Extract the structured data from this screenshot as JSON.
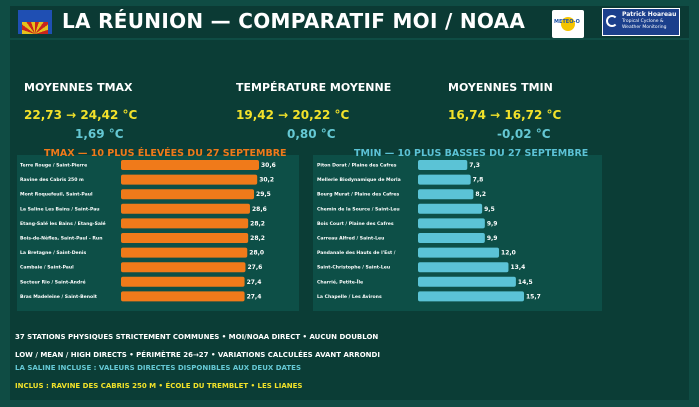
{
  "header": {
    "title": "LA RÉUNION — COMPARATIF MOI / NOAA",
    "logo_meteo": "METEO-O",
    "logo_ph_name": "Patrick Hoareau",
    "logo_ph_sub": "Tropical Cyclone & Weather Monitoring"
  },
  "stats": {
    "tmax": {
      "label": "MOYENNES TMAX",
      "range": "22,73 → 24,42 °C",
      "delta": "1,69 °C"
    },
    "tmean": {
      "label": "TEMPÉRATURE MOYENNE",
      "range": "19,42 → 20,22 °C",
      "delta": "0,80 °C"
    },
    "tmin": {
      "label": "MOYENNES TMIN",
      "range": "16,74 → 16,72 °C",
      "delta": "-0,02 °C"
    }
  },
  "chart_data": [
    {
      "type": "bar",
      "orientation": "horizontal",
      "title": "TMAX — 10 PLUS ÉLEVÉES DU 27 SEPTEMBRE",
      "color": "#f07a1a",
      "categories": [
        "Terre Rouge / Saint-Pierre",
        "Ravine des Cabris 250 m",
        "Mont Roquefeuil, Saint-Paul",
        "La Saline Les Bains / Saint-Pau",
        "Etang-Salé les Bains / Etang-Salé",
        "Bois-de-Nèfles, Saint-Paul - Run",
        "La Bretagne / Saint-Denis",
        "Cambaie / Saint-Paul",
        "Secteur Rio / Saint-André",
        "Bras Madeleine / Saint-Benoît"
      ],
      "values": [
        30.6,
        30.2,
        29.5,
        28.6,
        28.2,
        28.2,
        28.0,
        27.6,
        27.4,
        27.4
      ],
      "value_labels": [
        "30,6",
        "30,2",
        "29,5",
        "28,6",
        "28,2",
        "28,2",
        "28,0",
        "27,6",
        "27,4",
        "27,4"
      ]
    },
    {
      "type": "bar",
      "orientation": "horizontal",
      "title": "TMIN — 10 PLUS BASSES DU 27 SEPTEMBRE",
      "color": "#5bc3d6",
      "categories": [
        "Piton Dorat / Plaine des Cafres",
        "Mellerie Biodynamique de Morla",
        "Bourg Murat / Plaine des Cafres",
        "Chemin de la Source / Saint-Leu",
        "Bois Court / Plaine des Cafres",
        "Carreau Alfred / Saint-Leu",
        "Pandanale des Hauts de l'Est /",
        "Saint-Christophe / Saint-Leu",
        "Charrié, Petite-Île",
        "La Chapelle / Les Avirons"
      ],
      "values": [
        7.3,
        7.8,
        8.2,
        9.5,
        9.9,
        9.9,
        12.0,
        13.4,
        14.5,
        15.7
      ],
      "value_labels": [
        "7,3",
        "7,8",
        "8,2",
        "9,5",
        "9,9",
        "9,9",
        "12,0",
        "13,4",
        "14,5",
        "15,7"
      ]
    }
  ],
  "footer": {
    "line1": "37 STATIONS PHYSIQUES STRICTEMENT COMMUNES • MOI/NOAA DIRECT • AUCUN DOUBLON",
    "line2": "LOW / MEAN / HIGH DIRECTS • PÉRIMÈTRE 26→27 • VARIATIONS CALCULÉES AVANT ARRONDI",
    "line3": "LA SALINE INCLUSE : VALEURS DIRECTES DISPONIBLES AUX DEUX DATES",
    "line4": "INCLUS : RAVINE DES CABRIS 250 M • ÉCOLE DU TREMBLET • LES LIANES",
    "colors": {
      "white": "#ffffff",
      "cyan": "#65c8d4",
      "yellow": "#f2e22a"
    }
  }
}
